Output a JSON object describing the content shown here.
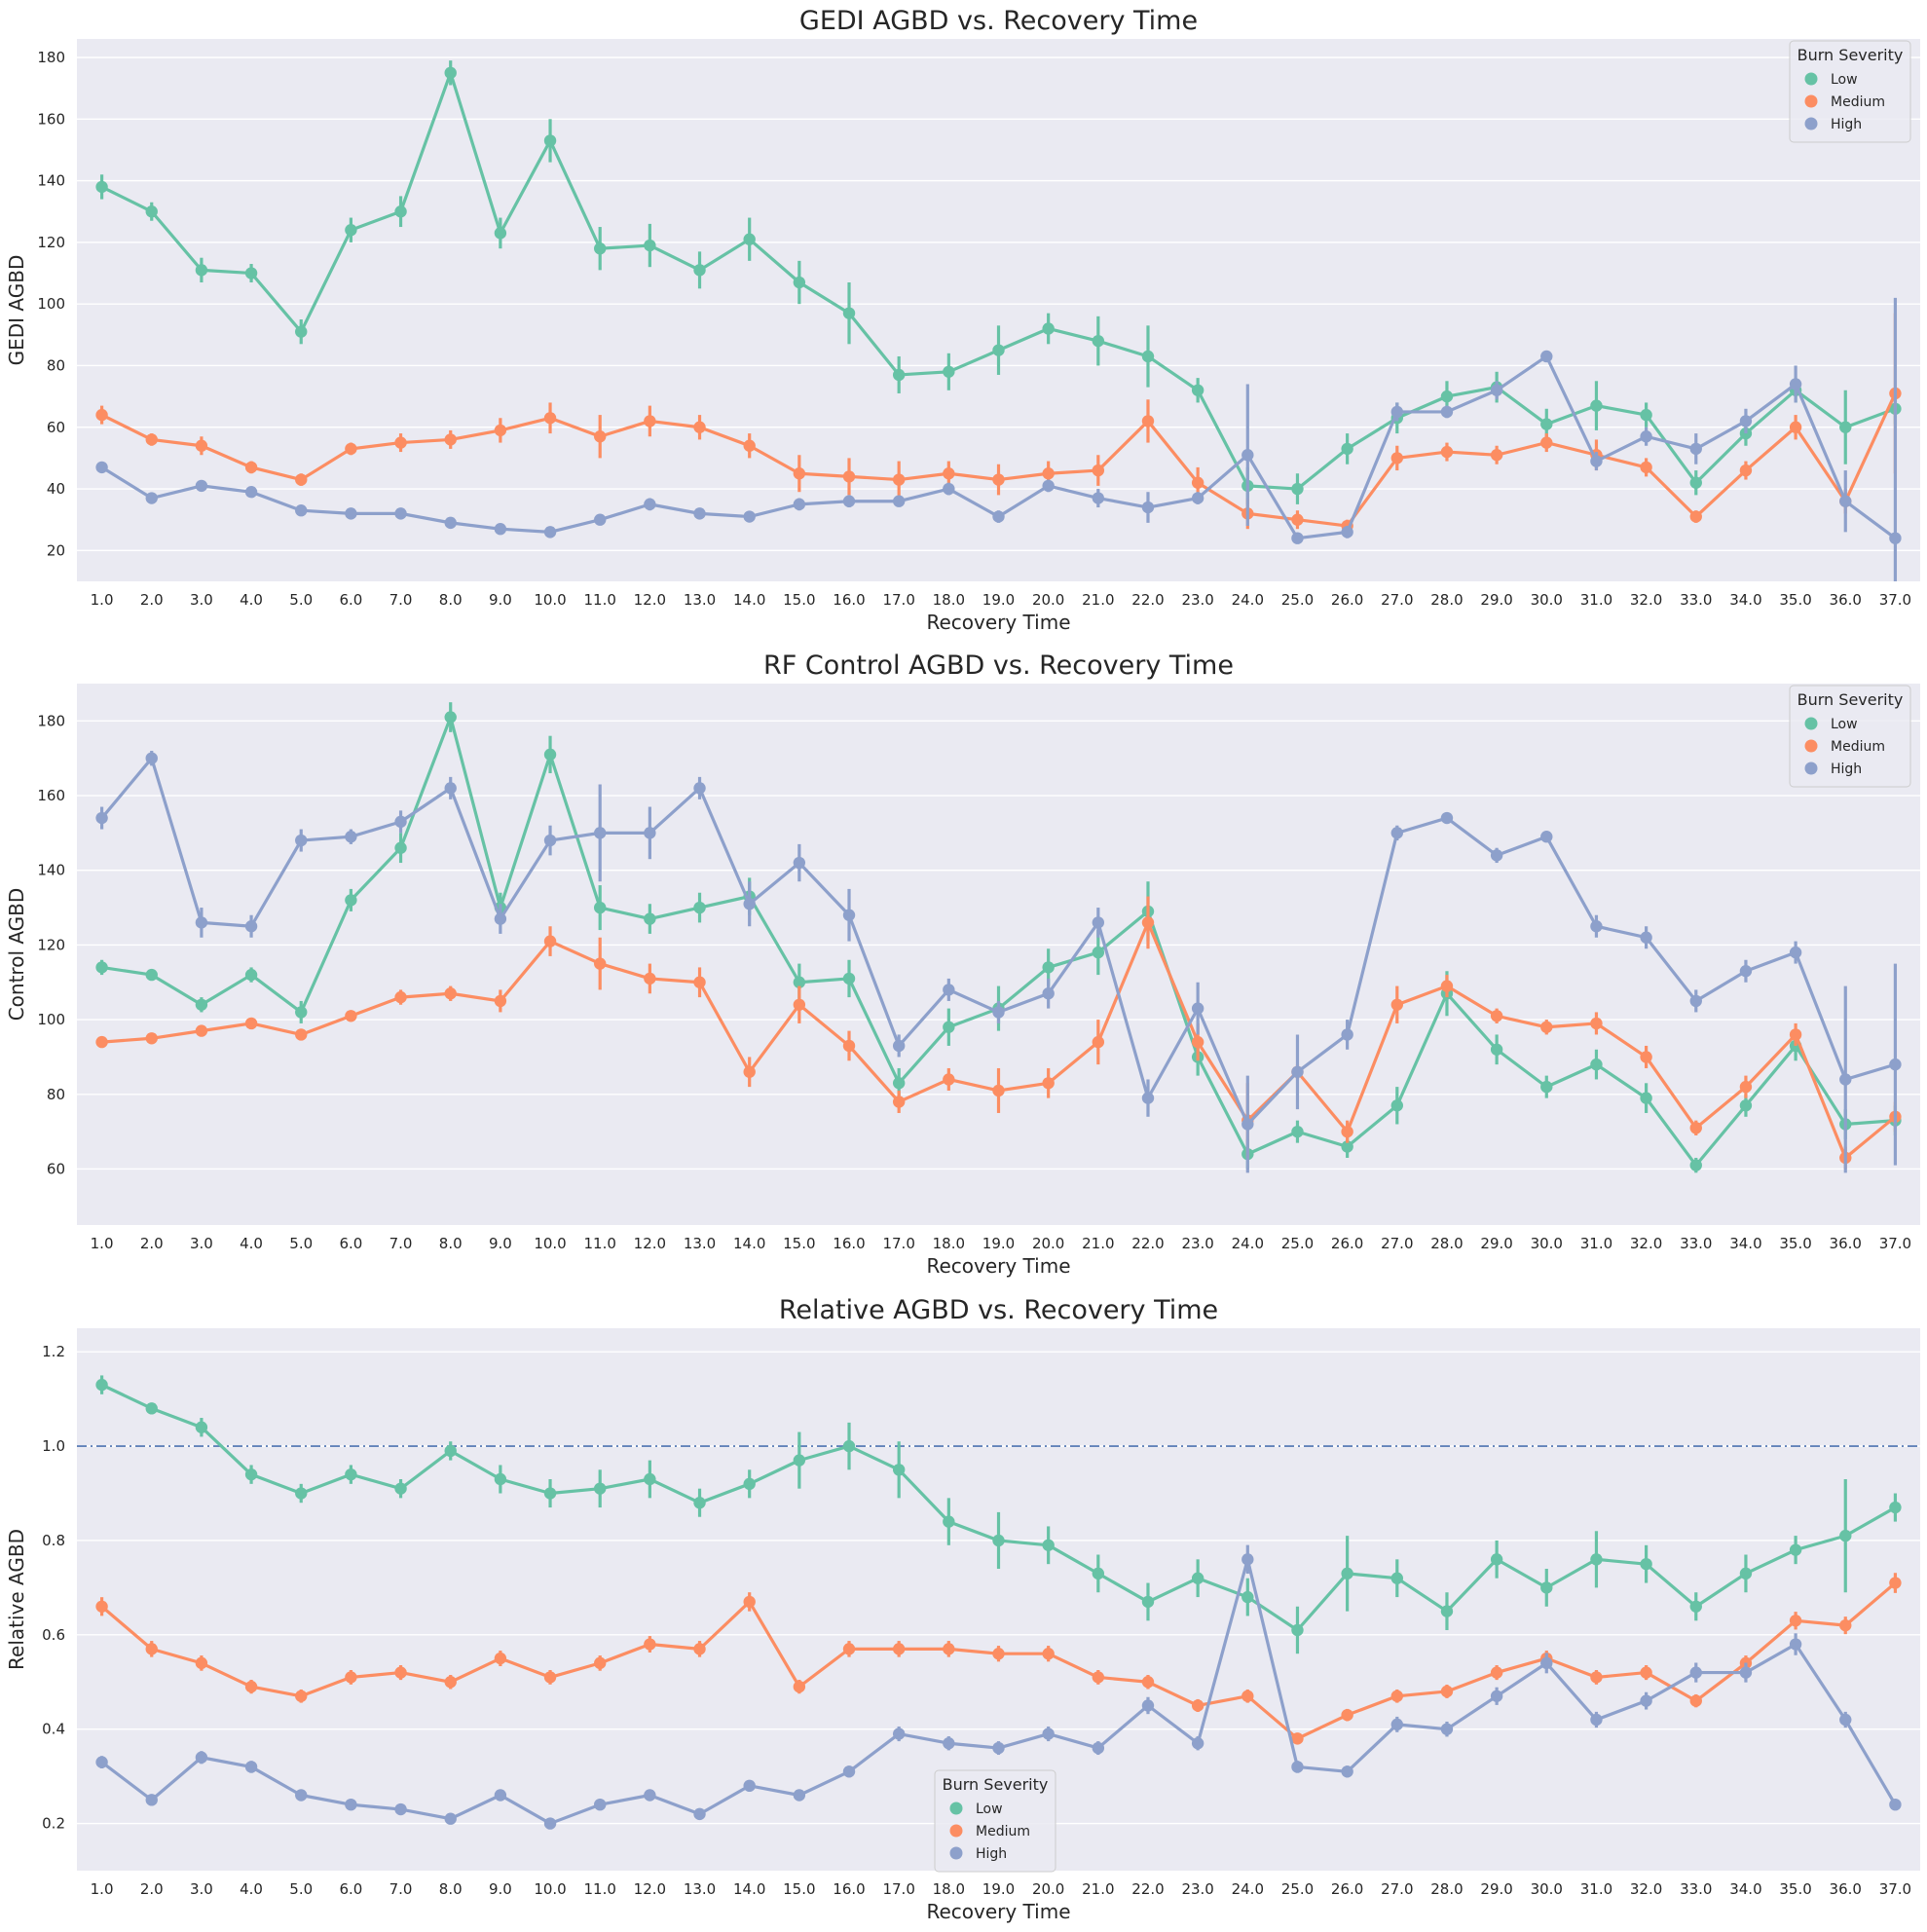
{
  "legend_title": "Burn Severity",
  "colors": {
    "Low": "#66c2a5",
    "Medium": "#fc8d62",
    "High": "#8da0cb",
    "refline": "#4c72b0"
  },
  "chart_data": [
    {
      "type": "line",
      "title": "GEDI AGBD vs. Recovery Time",
      "xlabel": "Recovery Time",
      "ylabel": "GEDI AGBD",
      "ylim": [
        10,
        186
      ],
      "yticks": [
        20,
        40,
        60,
        80,
        100,
        120,
        140,
        160,
        180
      ],
      "ytick_labels": [
        "20",
        "40",
        "60",
        "80",
        "100",
        "120",
        "140",
        "160",
        "180"
      ],
      "x": [
        "1.0",
        "2.0",
        "3.0",
        "4.0",
        "5.0",
        "6.0",
        "7.0",
        "8.0",
        "9.0",
        "10.0",
        "11.0",
        "12.0",
        "13.0",
        "14.0",
        "15.0",
        "16.0",
        "17.0",
        "18.0",
        "19.0",
        "20.0",
        "21.0",
        "22.0",
        "23.0",
        "24.0",
        "25.0",
        "26.0",
        "27.0",
        "28.0",
        "29.0",
        "30.0",
        "31.0",
        "32.0",
        "33.0",
        "34.0",
        "35.0",
        "36.0",
        "37.0"
      ],
      "legend_position": "upper right",
      "series": [
        {
          "name": "Low",
          "values": [
            138,
            130,
            111,
            110,
            91,
            124,
            130,
            175,
            123,
            153,
            118,
            119,
            111,
            121,
            107,
            97,
            77,
            78,
            85,
            92,
            88,
            83,
            72,
            41,
            40,
            53,
            63,
            70,
            73,
            61,
            67,
            64,
            42,
            58,
            72,
            60,
            66
          ],
          "err": [
            4,
            3,
            4,
            3,
            4,
            4,
            5,
            4,
            5,
            7,
            7,
            7,
            6,
            7,
            7,
            10,
            6,
            6,
            8,
            5,
            8,
            10,
            4,
            6,
            5,
            5,
            5,
            5,
            5,
            5,
            8,
            4,
            4,
            4,
            4,
            12,
            5
          ]
        },
        {
          "name": "Medium",
          "values": [
            64,
            56,
            54,
            47,
            43,
            53,
            55,
            56,
            59,
            63,
            57,
            62,
            60,
            54,
            45,
            44,
            43,
            45,
            43,
            45,
            46,
            62,
            42,
            32,
            30,
            28,
            50,
            52,
            51,
            55,
            51,
            47,
            31,
            46,
            60,
            36,
            71
          ],
          "err": [
            3,
            2,
            3,
            2,
            2,
            2,
            3,
            3,
            4,
            5,
            7,
            5,
            4,
            4,
            6,
            6,
            6,
            4,
            5,
            4,
            5,
            7,
            5,
            5,
            3,
            2,
            4,
            3,
            3,
            3,
            5,
            3,
            2,
            3,
            4,
            4,
            26
          ]
        },
        {
          "name": "High",
          "values": [
            47,
            37,
            41,
            39,
            33,
            32,
            32,
            29,
            27,
            26,
            30,
            35,
            32,
            31,
            35,
            36,
            36,
            40,
            31,
            41,
            37,
            34,
            37,
            51,
            24,
            26,
            65,
            65,
            72,
            83,
            49,
            57,
            53,
            62,
            74,
            36,
            24
          ],
          "err": [
            1,
            1,
            1,
            1,
            1,
            1,
            1,
            1,
            1,
            1,
            1,
            2,
            1,
            1,
            2,
            2,
            1,
            2,
            2,
            2,
            3,
            5,
            2,
            23,
            1,
            2,
            3,
            2,
            3,
            1,
            3,
            3,
            5,
            4,
            6,
            10,
            78
          ]
        }
      ]
    },
    {
      "type": "line",
      "title": "RF Control AGBD vs. Recovery Time",
      "xlabel": "Recovery Time",
      "ylabel": "Control AGBD",
      "ylim": [
        45,
        190
      ],
      "yticks": [
        60,
        80,
        100,
        120,
        140,
        160,
        180
      ],
      "ytick_labels": [
        "60",
        "80",
        "100",
        "120",
        "140",
        "160",
        "180"
      ],
      "x": [
        "1.0",
        "2.0",
        "3.0",
        "4.0",
        "5.0",
        "6.0",
        "7.0",
        "8.0",
        "9.0",
        "10.0",
        "11.0",
        "12.0",
        "13.0",
        "14.0",
        "15.0",
        "16.0",
        "17.0",
        "18.0",
        "19.0",
        "20.0",
        "21.0",
        "22.0",
        "23.0",
        "24.0",
        "25.0",
        "26.0",
        "27.0",
        "28.0",
        "29.0",
        "30.0",
        "31.0",
        "32.0",
        "33.0",
        "34.0",
        "35.0",
        "36.0",
        "37.0"
      ],
      "legend_position": "upper right",
      "series": [
        {
          "name": "Low",
          "values": [
            114,
            112,
            104,
            112,
            102,
            132,
            146,
            181,
            130,
            171,
            130,
            127,
            130,
            133,
            110,
            111,
            83,
            98,
            103,
            114,
            118,
            129,
            90,
            64,
            70,
            66,
            77,
            107,
            92,
            82,
            88,
            79,
            61,
            77,
            93,
            72,
            73
          ],
          "err": [
            2,
            1,
            2,
            2,
            3,
            3,
            4,
            4,
            4,
            5,
            6,
            4,
            4,
            5,
            5,
            5,
            4,
            5,
            6,
            5,
            6,
            8,
            5,
            4,
            3,
            3,
            5,
            6,
            4,
            3,
            4,
            4,
            2,
            3,
            4,
            4,
            4
          ]
        },
        {
          "name": "Medium",
          "values": [
            94,
            95,
            97,
            99,
            96,
            101,
            106,
            107,
            105,
            121,
            115,
            111,
            110,
            86,
            104,
            93,
            78,
            84,
            81,
            83,
            94,
            126,
            94,
            73,
            86,
            70,
            104,
            109,
            101,
            98,
            99,
            90,
            71,
            82,
            96,
            63,
            74
          ],
          "err": [
            1,
            1,
            1,
            1,
            1,
            1,
            2,
            2,
            3,
            4,
            7,
            4,
            4,
            4,
            5,
            4,
            3,
            3,
            6,
            4,
            6,
            7,
            5,
            10,
            2,
            3,
            5,
            3,
            2,
            2,
            3,
            3,
            2,
            3,
            3,
            3,
            4
          ]
        },
        {
          "name": "High",
          "values": [
            154,
            170,
            126,
            125,
            148,
            149,
            153,
            162,
            127,
            148,
            150,
            150,
            162,
            131,
            142,
            128,
            93,
            108,
            102,
            107,
            126,
            79,
            103,
            72,
            86,
            96,
            150,
            154,
            144,
            149,
            125,
            122,
            105,
            113,
            118,
            84,
            88
          ],
          "err": [
            3,
            2,
            4,
            3,
            3,
            2,
            3,
            3,
            4,
            4,
            13,
            7,
            3,
            6,
            5,
            7,
            3,
            3,
            3,
            4,
            4,
            5,
            7,
            13,
            10,
            4,
            2,
            1,
            2,
            1,
            3,
            3,
            3,
            3,
            3,
            25,
            27
          ]
        }
      ]
    },
    {
      "type": "line",
      "title": "Relative AGBD vs. Recovery Time",
      "xlabel": "Recovery Time",
      "ylabel": "Relative AGBD",
      "ylim": [
        0.1,
        1.25
      ],
      "yticks": [
        0.2,
        0.4,
        0.6,
        0.8,
        1.0,
        1.2
      ],
      "ytick_labels": [
        "0.2",
        "0.4",
        "0.6",
        "0.8",
        "1.0",
        "1.2"
      ],
      "reference_line": 1.0,
      "x": [
        "1.0",
        "2.0",
        "3.0",
        "4.0",
        "5.0",
        "6.0",
        "7.0",
        "8.0",
        "9.0",
        "10.0",
        "11.0",
        "12.0",
        "13.0",
        "14.0",
        "15.0",
        "16.0",
        "17.0",
        "18.0",
        "19.0",
        "20.0",
        "21.0",
        "22.0",
        "23.0",
        "24.0",
        "25.0",
        "26.0",
        "27.0",
        "28.0",
        "29.0",
        "30.0",
        "31.0",
        "32.0",
        "33.0",
        "34.0",
        "35.0",
        "36.0",
        "37.0"
      ],
      "legend_position": "lower center",
      "series": [
        {
          "name": "Low",
          "values": [
            1.13,
            1.08,
            1.04,
            0.94,
            0.9,
            0.94,
            0.91,
            0.99,
            0.93,
            0.9,
            0.91,
            0.93,
            0.88,
            0.92,
            0.97,
            1.0,
            0.95,
            0.84,
            0.8,
            0.79,
            0.73,
            0.67,
            0.72,
            0.68,
            0.61,
            0.73,
            0.72,
            0.65,
            0.76,
            0.7,
            0.76,
            0.75,
            0.66,
            0.73,
            0.78,
            0.81,
            0.87
          ],
          "err": [
            0.02,
            0.01,
            0.02,
            0.02,
            0.02,
            0.02,
            0.02,
            0.02,
            0.03,
            0.03,
            0.04,
            0.04,
            0.03,
            0.03,
            0.06,
            0.05,
            0.06,
            0.05,
            0.06,
            0.04,
            0.04,
            0.04,
            0.04,
            0.04,
            0.05,
            0.08,
            0.04,
            0.04,
            0.04,
            0.04,
            0.06,
            0.04,
            0.03,
            0.04,
            0.03,
            0.12,
            0.03
          ]
        },
        {
          "name": "Medium",
          "values": [
            0.66,
            0.57,
            0.54,
            0.49,
            0.47,
            0.51,
            0.52,
            0.5,
            0.55,
            0.51,
            0.54,
            0.58,
            0.57,
            0.67,
            0.49,
            0.57,
            0.57,
            0.57,
            0.56,
            0.56,
            0.51,
            0.5,
            0.45,
            0.47,
            0.38,
            0.43,
            0.47,
            0.48,
            0.52,
            0.55,
            0.51,
            0.52,
            0.46,
            0.54,
            0.63,
            0.62,
            0.71
          ]
        },
        {
          "name": "High",
          "values": [
            0.33,
            0.25,
            0.34,
            0.32,
            0.26,
            0.24,
            0.23,
            0.21,
            0.26,
            0.2,
            0.24,
            0.26,
            0.22,
            0.28,
            0.26,
            0.31,
            0.39,
            0.37,
            0.36,
            0.39,
            0.36,
            0.45,
            0.37,
            0.76,
            0.32,
            0.31,
            0.41,
            0.4,
            0.47,
            0.54,
            0.42,
            0.46,
            0.52,
            0.52,
            0.58,
            0.42,
            0.24
          ]
        }
      ]
    }
  ]
}
